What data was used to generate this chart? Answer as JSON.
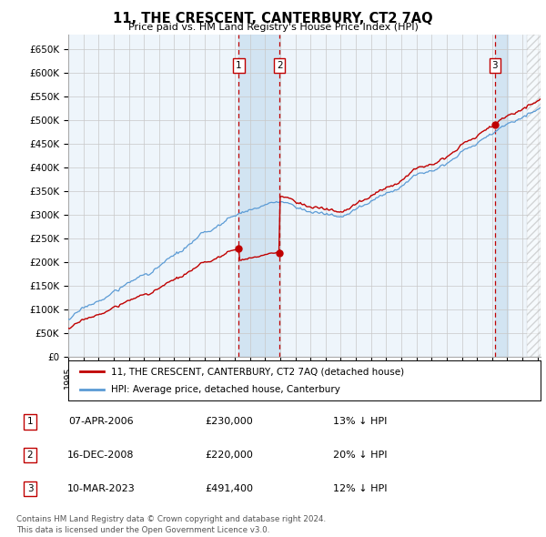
{
  "title": "11, THE CRESCENT, CANTERBURY, CT2 7AQ",
  "subtitle": "Price paid vs. HM Land Registry's House Price Index (HPI)",
  "ylim": [
    0,
    680000
  ],
  "xlim_start": 1995.3,
  "xlim_end": 2026.2,
  "sale_dates": [
    2006.27,
    2008.96,
    2023.19
  ],
  "sale_prices": [
    230000,
    220000,
    491400
  ],
  "sale_labels": [
    "1",
    "2",
    "3"
  ],
  "legend_line1": "11, THE CRESCENT, CANTERBURY, CT2 7AQ (detached house)",
  "legend_line2": "HPI: Average price, detached house, Canterbury",
  "table_rows": [
    {
      "num": "1",
      "date": "07-APR-2006",
      "price": "£230,000",
      "pct": "13% ↓ HPI"
    },
    {
      "num": "2",
      "date": "16-DEC-2008",
      "price": "£220,000",
      "pct": "20% ↓ HPI"
    },
    {
      "num": "3",
      "date": "10-MAR-2023",
      "price": "£491,400",
      "pct": "12% ↓ HPI"
    }
  ],
  "footnote1": "Contains HM Land Registry data © Crown copyright and database right 2024.",
  "footnote2": "This data is licensed under the Open Government Licence v3.0.",
  "hpi_color": "#5b9bd5",
  "sale_color": "#c00000",
  "bg_chart": "#eef5fb",
  "grid_color": "#c8c8c8",
  "highlight_color_blue": "#cce0f0",
  "hatch_color": "#b0b0b0"
}
